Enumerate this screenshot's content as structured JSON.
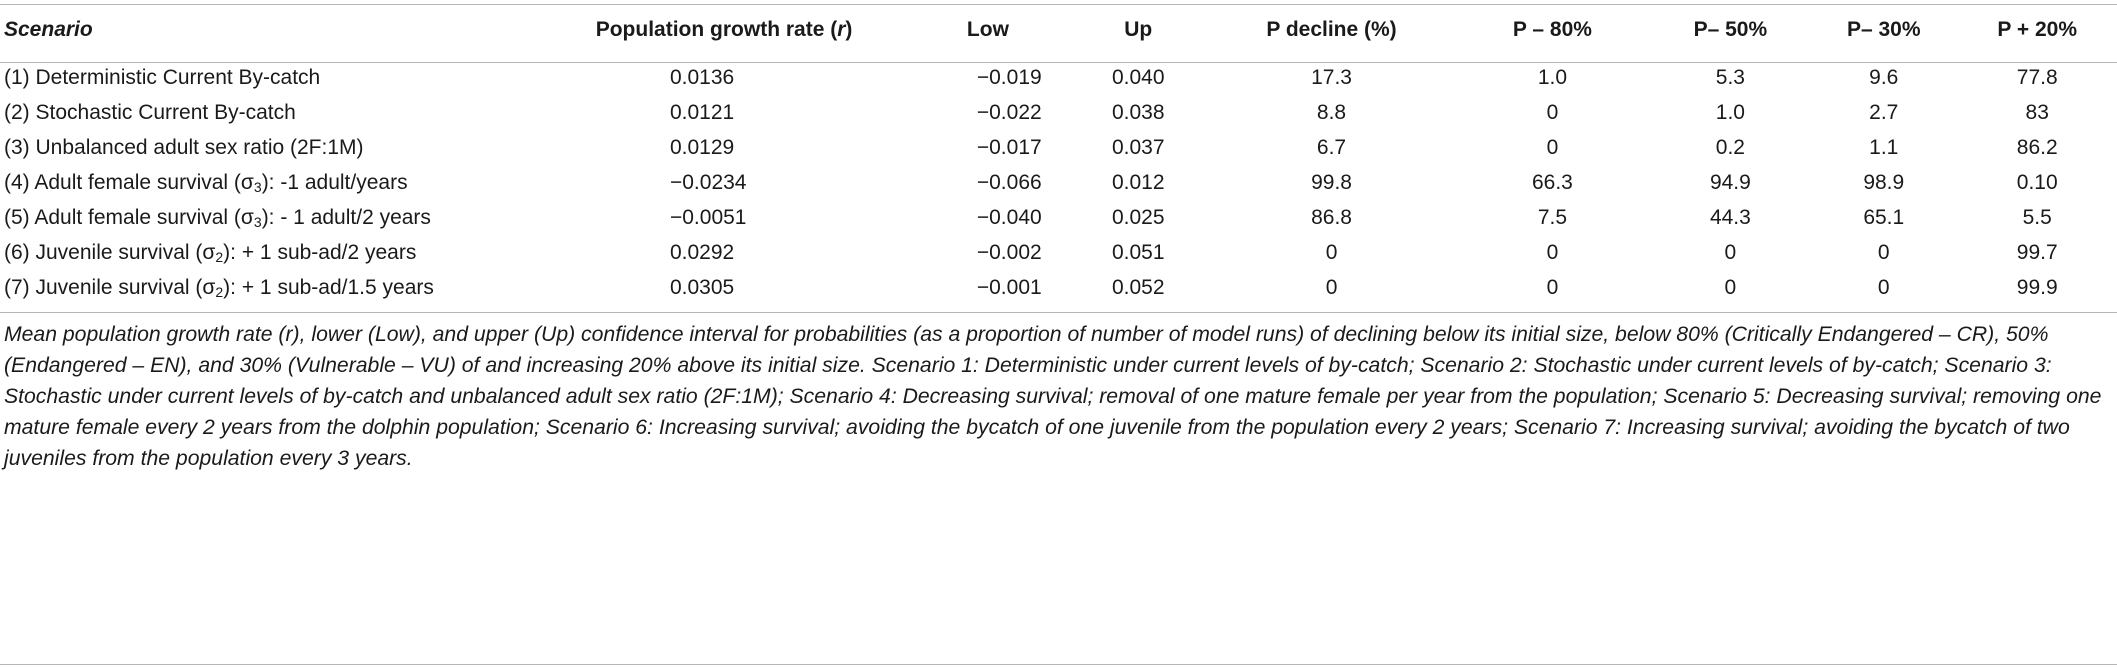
{
  "table": {
    "headers": [
      "Scenario",
      "Population growth rate (r)",
      "Low",
      "Up",
      "P decline (%)",
      "P – 80%",
      "P– 50%",
      "P– 30%",
      "P + 20%"
    ],
    "header_r_prefix": "Population growth rate (",
    "header_r_var": "r",
    "header_r_suffix": ")",
    "rows": [
      {
        "label_pre": "(1) Deterministic Current By-catch",
        "sym": "",
        "sub": "",
        "label_post": "",
        "r": "0.0136",
        "low": "−0.019",
        "up": "0.040",
        "p_decline": "17.3",
        "p80": "1.0",
        "p50": "5.3",
        "p30": "9.6",
        "p20": "77.8"
      },
      {
        "label_pre": "(2) Stochastic Current By-catch",
        "sym": "",
        "sub": "",
        "label_post": "",
        "r": "0.0121",
        "low": "−0.022",
        "up": "0.038",
        "p_decline": "8.8",
        "p80": "0",
        "p50": "1.0",
        "p30": "2.7",
        "p20": "83"
      },
      {
        "label_pre": "(3) Unbalanced adult sex ratio (2F:1M)",
        "sym": "",
        "sub": "",
        "label_post": "",
        "r": "0.0129",
        "low": "−0.017",
        "up": "0.037",
        "p_decline": "6.7",
        "p80": "0",
        "p50": "0.2",
        "p30": "1.1",
        "p20": "86.2"
      },
      {
        "label_pre": "(4) Adult female survival (",
        "sym": "σ",
        "sub": "3",
        "label_post": "): -1 adult/years",
        "r": "−0.0234",
        "low": "−0.066",
        "up": "0.012",
        "p_decline": "99.8",
        "p80": "66.3",
        "p50": "94.9",
        "p30": "98.9",
        "p20": "0.10"
      },
      {
        "label_pre": "(5) Adult female survival (",
        "sym": "σ",
        "sub": "3",
        "label_post": "): - 1 adult/2 years",
        "r": "−0.0051",
        "low": "−0.040",
        "up": "0.025",
        "p_decline": "86.8",
        "p80": "7.5",
        "p50": "44.3",
        "p30": "65.1",
        "p20": "5.5"
      },
      {
        "label_pre": "(6) Juvenile survival (",
        "sym": "σ",
        "sub": "2",
        "label_post": "): + 1 sub-ad/2 years",
        "r": "0.0292",
        "low": "−0.002",
        "up": "0.051",
        "p_decline": "0",
        "p80": "0",
        "p50": "0",
        "p30": "0",
        "p20": "99.7"
      },
      {
        "label_pre": "(7) Juvenile survival (",
        "sym": "σ",
        "sub": "2",
        "label_post": "): + 1 sub-ad/1.5 years",
        "r": "0.0305",
        "low": "−0.001",
        "up": "0.052",
        "p_decline": "0",
        "p80": "0",
        "p50": "0",
        "p30": "0",
        "p20": "99.9"
      }
    ],
    "footnote": "Mean population growth rate (r), lower (Low), and upper (Up) confidence interval for probabilities (as a proportion of number of model runs) of declining below its initial size, below 80% (Critically Endangered – CR), 50% (Endangered – EN), and 30% (Vulnerable – VU) of and increasing 20% above its initial size. Scenario 1: Deterministic under current levels of by-catch; Scenario 2: Stochastic under current levels of by-catch; Scenario 3: Stochastic under current levels of by-catch and unbalanced adult sex ratio (2F:1M); Scenario 4: Decreasing survival; removal of one mature female per year from the population; Scenario 5: Decreasing survival; removing one mature female every 2 years from the dolphin population; Scenario 6: Increasing survival; avoiding the bycatch of one juvenile from the population every 2 years; Scenario 7: Increasing survival; avoiding the bycatch of two juveniles from the population every 3 years."
  }
}
